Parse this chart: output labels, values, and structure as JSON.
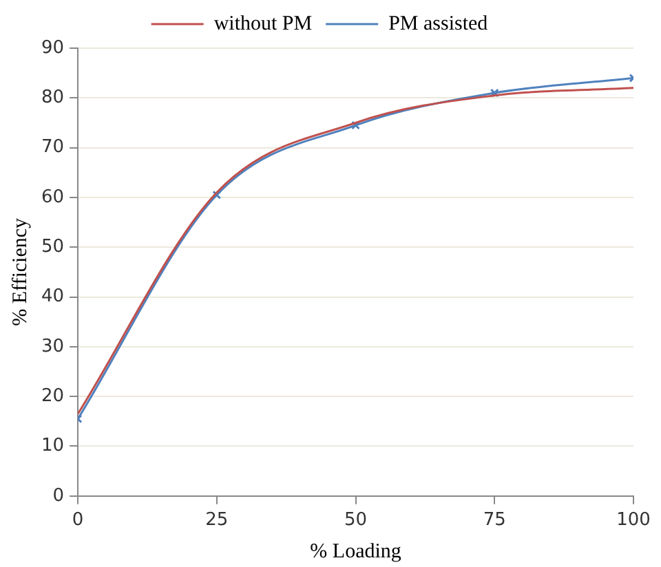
{
  "chart_data": {
    "type": "line",
    "xlabel": "% Loading",
    "ylabel": "% Efficiency",
    "x": [
      0,
      25,
      50,
      75,
      100
    ],
    "series": [
      {
        "name": "without PM",
        "color": "#c0504d",
        "marker": "none",
        "values": [
          16.5,
          61,
          75,
          80.5,
          82
        ]
      },
      {
        "name": "PM assisted",
        "color": "#4f81bd",
        "marker": "cross",
        "values": [
          15.5,
          60.5,
          74.5,
          81,
          84
        ]
      }
    ],
    "xlim": [
      0,
      100
    ],
    "xticks": [
      0,
      25,
      50,
      75,
      100
    ],
    "ylim": [
      0,
      90
    ],
    "yticks": [
      0,
      10,
      20,
      30,
      40,
      50,
      60,
      70,
      80,
      90
    ],
    "grid": "y",
    "legend": "top"
  }
}
